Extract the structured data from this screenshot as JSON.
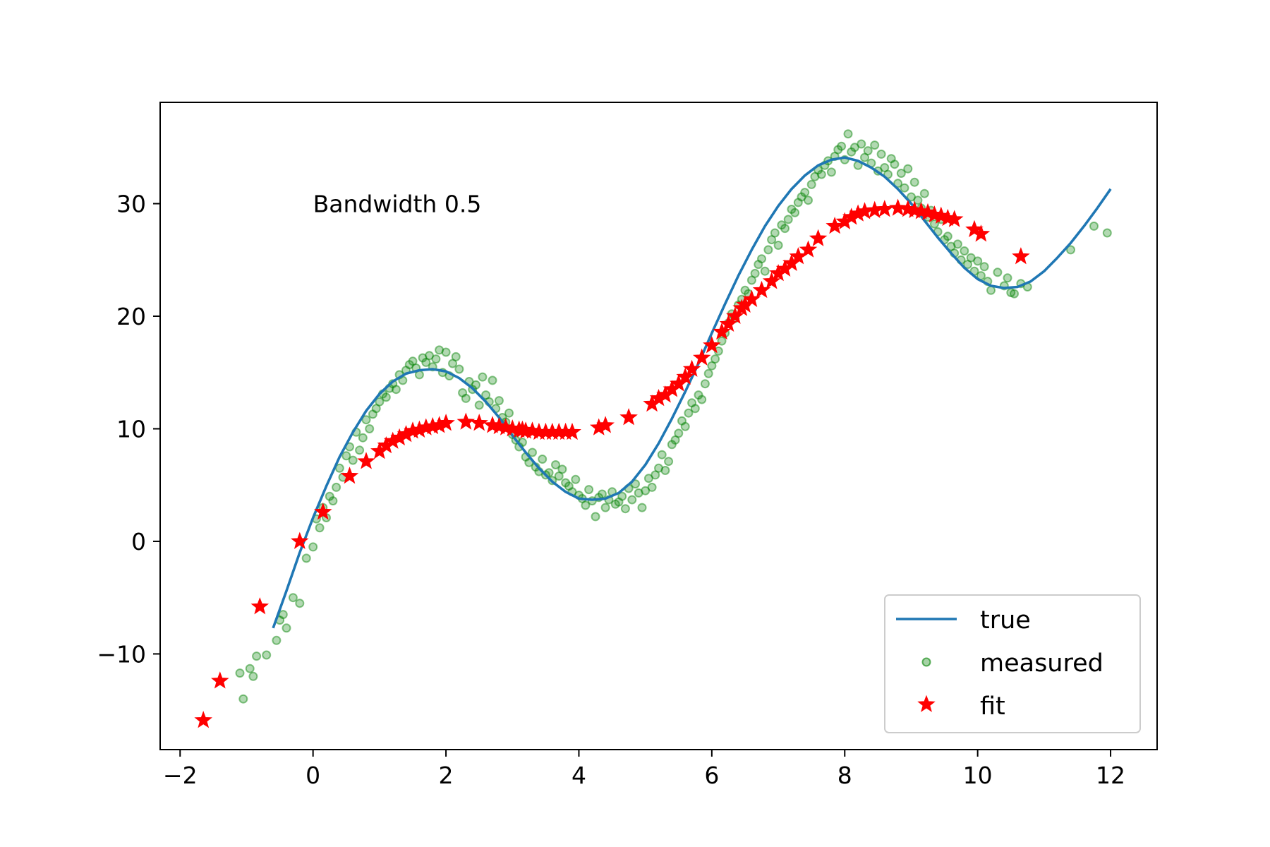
{
  "chart_data": {
    "type": "scatter",
    "title": "",
    "xlabel": "",
    "ylabel": "",
    "xlim": [
      -2.3,
      12.7
    ],
    "ylim": [
      -18.5,
      39.0
    ],
    "xticks": [
      -2,
      0,
      2,
      4,
      6,
      8,
      10,
      12
    ],
    "xtick_labels": [
      "−2",
      "0",
      "2",
      "4",
      "6",
      "8",
      "10",
      "12"
    ],
    "yticks": [
      -10,
      0,
      10,
      20,
      30
    ],
    "ytick_labels": [
      "−10",
      "0",
      "10",
      "20",
      "30"
    ],
    "grid": false,
    "legend_position": "lower-right",
    "annotation": {
      "text": "Bandwidth 0.5",
      "x": 0.0,
      "y": 30.0
    },
    "series": [
      {
        "name": "true",
        "kind": "line",
        "color": "#1f77b4",
        "x": [
          -0.6,
          -0.4,
          -0.2,
          0.0,
          0.2,
          0.4,
          0.6,
          0.8,
          1.0,
          1.2,
          1.4,
          1.6,
          1.8,
          2.0,
          2.2,
          2.4,
          2.6,
          2.8,
          3.0,
          3.2,
          3.4,
          3.6,
          3.8,
          4.0,
          4.2,
          4.4,
          4.6,
          4.8,
          5.0,
          5.2,
          5.4,
          5.6,
          5.8,
          6.0,
          6.2,
          6.4,
          6.6,
          6.8,
          7.0,
          7.2,
          7.4,
          7.6,
          7.8,
          8.0,
          8.2,
          8.4,
          8.6,
          8.8,
          9.0,
          9.2,
          9.4,
          9.6,
          9.8,
          10.0,
          10.2,
          10.4,
          10.6,
          10.8,
          11.0,
          11.2,
          11.4,
          11.6,
          11.8,
          12.0
        ],
        "y": [
          -7.7,
          -4.4,
          -1.0,
          2.1,
          4.9,
          7.5,
          9.7,
          11.6,
          13.1,
          14.2,
          14.9,
          15.2,
          15.3,
          15.1,
          14.5,
          13.6,
          12.4,
          11.0,
          9.4,
          7.9,
          6.5,
          5.3,
          4.4,
          3.8,
          3.7,
          3.8,
          4.3,
          5.3,
          6.8,
          8.7,
          10.9,
          13.3,
          15.8,
          18.5,
          21.1,
          23.6,
          25.9,
          28.0,
          29.8,
          31.3,
          32.5,
          33.4,
          33.9,
          34.1,
          33.8,
          33.2,
          32.4,
          31.3,
          30.0,
          28.5,
          27.0,
          25.6,
          24.3,
          23.3,
          22.7,
          22.5,
          22.6,
          23.1,
          24.0,
          25.2,
          26.5,
          28.0,
          29.6,
          31.3
        ]
      },
      {
        "name": "measured",
        "kind": "points",
        "color": "#008000",
        "x": [
          -1.1,
          -1.05,
          -0.95,
          -0.9,
          -0.85,
          -0.7,
          -0.55,
          -0.5,
          -0.45,
          -0.4,
          -0.3,
          -0.2,
          -0.1,
          0.0,
          0.05,
          0.1,
          0.15,
          0.2,
          0.25,
          0.3,
          0.35,
          0.4,
          0.45,
          0.5,
          0.55,
          0.6,
          0.65,
          0.7,
          0.75,
          0.8,
          0.85,
          0.9,
          0.95,
          1.0,
          1.05,
          1.1,
          1.15,
          1.2,
          1.25,
          1.3,
          1.35,
          1.4,
          1.45,
          1.5,
          1.55,
          1.6,
          1.65,
          1.7,
          1.75,
          1.8,
          1.85,
          1.9,
          1.95,
          2.0,
          2.05,
          2.1,
          2.15,
          2.2,
          2.25,
          2.3,
          2.35,
          2.4,
          2.45,
          2.5,
          2.55,
          2.6,
          2.65,
          2.7,
          2.75,
          2.8,
          2.85,
          2.9,
          2.95,
          3.0,
          3.05,
          3.1,
          3.15,
          3.2,
          3.25,
          3.3,
          3.35,
          3.4,
          3.45,
          3.5,
          3.55,
          3.6,
          3.65,
          3.7,
          3.75,
          3.8,
          3.85,
          3.9,
          3.95,
          4.0,
          4.05,
          4.1,
          4.15,
          4.2,
          4.25,
          4.3,
          4.35,
          4.4,
          4.45,
          4.5,
          4.55,
          4.6,
          4.65,
          4.7,
          4.75,
          4.8,
          4.85,
          4.9,
          4.95,
          5.0,
          5.05,
          5.1,
          5.15,
          5.2,
          5.25,
          5.3,
          5.35,
          5.4,
          5.45,
          5.5,
          5.55,
          5.6,
          5.65,
          5.7,
          5.75,
          5.8,
          5.85,
          5.9,
          5.95,
          6.0,
          6.05,
          6.1,
          6.15,
          6.2,
          6.25,
          6.3,
          6.35,
          6.4,
          6.45,
          6.5,
          6.55,
          6.6,
          6.65,
          6.7,
          6.75,
          6.8,
          6.85,
          6.9,
          6.95,
          7.0,
          7.05,
          7.1,
          7.15,
          7.2,
          7.25,
          7.3,
          7.35,
          7.4,
          7.45,
          7.5,
          7.55,
          7.6,
          7.65,
          7.7,
          7.75,
          7.8,
          7.85,
          7.9,
          7.95,
          8.0,
          8.05,
          8.1,
          8.15,
          8.2,
          8.25,
          8.3,
          8.35,
          8.4,
          8.45,
          8.5,
          8.55,
          8.6,
          8.65,
          8.7,
          8.75,
          8.8,
          8.85,
          8.9,
          8.95,
          9.0,
          9.05,
          9.1,
          9.15,
          9.2,
          9.25,
          9.3,
          9.35,
          9.4,
          9.45,
          9.5,
          9.55,
          9.6,
          9.65,
          9.7,
          9.75,
          9.8,
          9.85,
          9.9,
          9.95,
          10.0,
          10.05,
          10.1,
          10.15,
          10.2,
          10.3,
          10.4,
          10.45,
          10.5,
          10.55,
          10.65,
          10.75,
          11.4,
          11.75,
          11.95
        ],
        "y": [
          -11.7,
          -14.0,
          -11.3,
          -12.0,
          -10.2,
          -10.1,
          -8.8,
          -7.0,
          -6.5,
          -7.7,
          -5.0,
          -5.5,
          -1.5,
          -0.5,
          2.0,
          1.2,
          3.0,
          2.1,
          4.0,
          3.6,
          4.8,
          6.5,
          5.7,
          7.6,
          8.4,
          7.2,
          9.7,
          8.1,
          9.2,
          10.8,
          10.0,
          11.3,
          11.8,
          12.4,
          13.1,
          12.8,
          13.6,
          14.0,
          13.5,
          14.8,
          14.3,
          15.2,
          15.7,
          16.0,
          15.4,
          14.8,
          16.3,
          15.9,
          16.5,
          15.5,
          16.2,
          17.0,
          15.0,
          16.8,
          14.7,
          15.8,
          16.4,
          15.3,
          13.2,
          12.7,
          14.2,
          13.5,
          13.9,
          12.1,
          14.6,
          13.0,
          12.4,
          14.3,
          11.8,
          12.5,
          11.0,
          10.6,
          11.4,
          9.5,
          9.0,
          8.4,
          8.8,
          7.5,
          7.0,
          7.9,
          6.6,
          6.2,
          7.3,
          5.9,
          6.1,
          5.4,
          6.8,
          5.8,
          6.4,
          5.2,
          4.9,
          4.4,
          5.5,
          4.1,
          3.8,
          3.2,
          4.6,
          3.6,
          2.2,
          3.9,
          4.2,
          3.0,
          3.7,
          4.4,
          3.3,
          3.5,
          4.0,
          2.9,
          4.7,
          3.7,
          5.1,
          4.3,
          3.0,
          4.5,
          5.6,
          4.8,
          5.9,
          6.5,
          7.7,
          6.3,
          7.1,
          8.6,
          9.0,
          9.6,
          10.7,
          10.2,
          11.4,
          12.3,
          11.8,
          13.0,
          12.6,
          14.0,
          14.9,
          15.6,
          16.2,
          16.9,
          17.8,
          18.5,
          19.4,
          20.2,
          19.8,
          21.0,
          21.5,
          22.3,
          22.0,
          23.2,
          23.8,
          24.6,
          25.1,
          24.0,
          25.9,
          26.8,
          27.4,
          26.3,
          28.1,
          27.8,
          28.6,
          29.5,
          29.2,
          30.1,
          30.6,
          31.0,
          30.3,
          31.7,
          32.4,
          33.0,
          32.6,
          33.4,
          33.8,
          32.8,
          34.2,
          34.8,
          35.1,
          33.9,
          36.2,
          34.6,
          35.0,
          33.4,
          35.3,
          34.1,
          34.7,
          33.6,
          35.2,
          32.9,
          34.4,
          33.2,
          32.6,
          34.0,
          33.5,
          31.8,
          32.7,
          31.4,
          33.1,
          30.6,
          31.9,
          30.3,
          29.6,
          30.9,
          28.8,
          29.4,
          28.2,
          27.5,
          28.6,
          26.8,
          27.1,
          26.2,
          25.6,
          26.4,
          25.0,
          25.8,
          24.6,
          25.2,
          24.0,
          24.9,
          23.6,
          24.4,
          23.1,
          22.3,
          23.9,
          22.7,
          23.4,
          22.1,
          22.0,
          22.9,
          22.6,
          25.9,
          28.0,
          27.4
        ]
      },
      {
        "name": "fit",
        "kind": "stars",
        "color": "#ff0000",
        "x": [
          -1.65,
          -1.4,
          -0.8,
          -0.2,
          0.15,
          0.55,
          0.8,
          1.0,
          1.1,
          1.2,
          1.3,
          1.4,
          1.5,
          1.6,
          1.7,
          1.8,
          1.9,
          2.0,
          2.3,
          2.5,
          2.7,
          2.8,
          2.9,
          3.0,
          3.1,
          3.15,
          3.2,
          3.3,
          3.4,
          3.5,
          3.6,
          3.7,
          3.8,
          3.9,
          4.3,
          4.4,
          4.75,
          5.1,
          5.2,
          5.3,
          5.4,
          5.5,
          5.6,
          5.7,
          5.85,
          6.0,
          6.15,
          6.25,
          6.35,
          6.45,
          6.5,
          6.6,
          6.75,
          6.9,
          7.0,
          7.1,
          7.2,
          7.3,
          7.45,
          7.6,
          7.85,
          8.0,
          8.1,
          8.2,
          8.3,
          8.45,
          8.6,
          8.8,
          8.95,
          9.05,
          9.15,
          9.25,
          9.35,
          9.45,
          9.55,
          9.65,
          9.95,
          10.05,
          10.65
        ],
        "y": [
          -15.9,
          -12.4,
          -5.8,
          0.0,
          2.6,
          5.8,
          7.1,
          8.0,
          8.5,
          8.9,
          9.2,
          9.5,
          9.8,
          9.9,
          10.1,
          10.2,
          10.3,
          10.5,
          10.6,
          10.5,
          10.3,
          10.2,
          10.1,
          10.0,
          9.9,
          9.9,
          9.8,
          9.8,
          9.7,
          9.7,
          9.7,
          9.7,
          9.7,
          9.7,
          10.1,
          10.3,
          11.0,
          12.2,
          12.7,
          13.0,
          13.5,
          14.0,
          14.6,
          15.3,
          16.3,
          17.4,
          18.6,
          19.3,
          20.0,
          20.7,
          21.0,
          21.5,
          22.3,
          23.1,
          23.8,
          24.2,
          24.7,
          25.3,
          25.9,
          26.9,
          28.0,
          28.4,
          28.8,
          29.1,
          29.3,
          29.4,
          29.5,
          29.6,
          29.5,
          29.4,
          29.3,
          29.2,
          29.0,
          28.9,
          28.7,
          28.6,
          27.7,
          27.3,
          25.3
        ]
      }
    ]
  }
}
